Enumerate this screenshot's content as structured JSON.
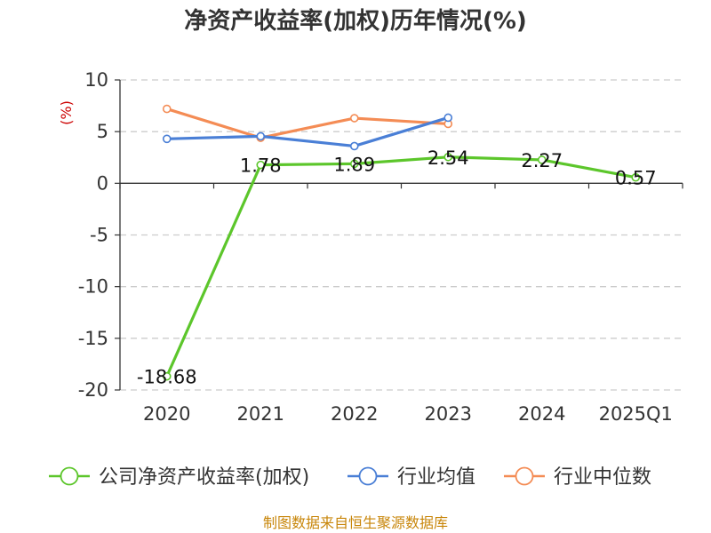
{
  "chart_data": {
    "type": "line",
    "title": "净资产收益率(加权)历年情况(%)",
    "ylabel": "(%)",
    "xlabel": "",
    "categories": [
      "2020",
      "2021",
      "2022",
      "2023",
      "2024",
      "2025Q1"
    ],
    "ylim": [
      -20,
      10
    ],
    "yticks": [
      10,
      5,
      0,
      -5,
      -10,
      -15,
      -20
    ],
    "grid": true,
    "legend_position": "bottom",
    "series": [
      {
        "name": "公司净资产收益率(加权)",
        "color": "#5cc62b",
        "values": [
          -18.68,
          1.78,
          1.89,
          2.54,
          2.27,
          0.57
        ],
        "labels": [
          "-18.68",
          "1.78",
          "1.89",
          "2.54",
          "2.27",
          "0.57"
        ]
      },
      {
        "name": "行业均值",
        "color": "#4a7fd6",
        "values": [
          4.3,
          4.55,
          3.6,
          6.35,
          null,
          null
        ]
      },
      {
        "name": "行业中位数",
        "color": "#f48c55",
        "values": [
          7.2,
          4.4,
          6.3,
          5.75,
          null,
          null
        ]
      }
    ]
  },
  "source": "制图数据来自恒生聚源数据库"
}
